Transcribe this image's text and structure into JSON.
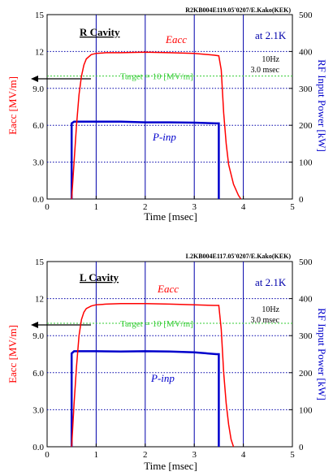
{
  "chart_data": [
    {
      "type": "line",
      "id_label": "R2KB004E119.05'0207/E.Kako(KEK)",
      "cavity_label": "R  Cavity",
      "temperature_label": "at  2.1K",
      "pulse_info": [
        "10Hz",
        "3.0 msec"
      ],
      "target_label": "Target = 10 [MV/m]",
      "target_value": 10,
      "xlabel": "Time   [msec]",
      "ylabel_left": "Eacc   [MV/m]",
      "ylabel_right": "RF Input Power   [kW]",
      "xlim": [
        0,
        5
      ],
      "ylim_left": [
        0,
        15
      ],
      "ylim_right": [
        0,
        500
      ],
      "x_ticks": [
        "0",
        "1",
        "2",
        "3",
        "4",
        "5"
      ],
      "y_ticks_left": [
        "0.0",
        "3.0",
        "6.0",
        "9.0",
        "12",
        "15"
      ],
      "y_ticks_right": [
        "0",
        "100",
        "200",
        "300",
        "400",
        "500"
      ],
      "colors": {
        "eacc": "#ff0000",
        "pinp": "#0000cc",
        "target": "#33cc33",
        "grid": "#0000aa"
      },
      "series": [
        {
          "name": "Eacc",
          "axis": "left",
          "x": [
            0.5,
            0.55,
            0.6,
            0.65,
            0.7,
            0.75,
            0.8,
            0.9,
            1.0,
            1.2,
            1.5,
            2.0,
            2.5,
            3.0,
            3.4,
            3.5,
            3.55,
            3.6,
            3.65,
            3.7,
            3.8,
            3.9,
            3.95
          ],
          "y": [
            0,
            3.0,
            6.0,
            8.5,
            10.0,
            10.9,
            11.4,
            11.75,
            11.85,
            11.9,
            11.9,
            11.95,
            11.9,
            11.85,
            11.7,
            11.65,
            10.5,
            7.0,
            4.5,
            2.8,
            1.2,
            0.3,
            0
          ]
        },
        {
          "name": "P-inp",
          "axis": "right",
          "x": [
            0.5,
            0.5,
            0.55,
            1.0,
            1.5,
            2.0,
            2.5,
            3.0,
            3.45,
            3.5,
            3.5
          ],
          "y": [
            0,
            205,
            210,
            210,
            210,
            208,
            208,
            207,
            205,
            205,
            0
          ]
        }
      ],
      "series_labels": {
        "eacc": "Eacc",
        "pinp": "P-inp"
      }
    },
    {
      "type": "line",
      "id_label": "L2KB004E117.05'0207/E.Kako(KEK)",
      "cavity_label": "L  Cavity",
      "temperature_label": "at  2.1K",
      "pulse_info": [
        "10Hz",
        "3.0 msec"
      ],
      "target_label": "Target = 10 [MV/m]",
      "target_value": 10,
      "xlabel": "Time   [msec]",
      "ylabel_left": "Eacc   [MV/m]",
      "ylabel_right": "RF Input Power   [kW]",
      "xlim": [
        0,
        5
      ],
      "ylim_left": [
        0,
        15
      ],
      "ylim_right": [
        0,
        500
      ],
      "x_ticks": [
        "0",
        "1",
        "2",
        "3",
        "4",
        "5"
      ],
      "y_ticks_left": [
        "0.0",
        "3.0",
        "6.0",
        "9.0",
        "12",
        "15"
      ],
      "y_ticks_right": [
        "0",
        "100",
        "200",
        "300",
        "400",
        "500"
      ],
      "colors": {
        "eacc": "#ff0000",
        "pinp": "#0000cc",
        "target": "#33cc33",
        "grid": "#0000aa"
      },
      "series": [
        {
          "name": "Eacc",
          "axis": "left",
          "x": [
            0.5,
            0.55,
            0.6,
            0.65,
            0.7,
            0.75,
            0.8,
            0.9,
            1.0,
            1.2,
            1.5,
            2.0,
            2.5,
            3.0,
            3.4,
            3.5,
            3.55,
            3.6,
            3.65,
            3.7,
            3.75,
            3.8
          ],
          "y": [
            0,
            3.5,
            6.5,
            9.0,
            10.3,
            10.9,
            11.2,
            11.4,
            11.5,
            11.55,
            11.6,
            11.6,
            11.55,
            11.5,
            11.45,
            11.45,
            9.5,
            6.0,
            3.5,
            1.8,
            0.6,
            0
          ]
        },
        {
          "name": "P-inp",
          "axis": "right",
          "x": [
            0.5,
            0.5,
            0.55,
            1.0,
            1.5,
            2.0,
            2.5,
            3.0,
            3.45,
            3.5,
            3.5
          ],
          "y": [
            0,
            252,
            258,
            258,
            257,
            258,
            257,
            255,
            250,
            250,
            0
          ]
        }
      ],
      "series_labels": {
        "eacc": "Eacc",
        "pinp": "P-inp"
      }
    }
  ]
}
